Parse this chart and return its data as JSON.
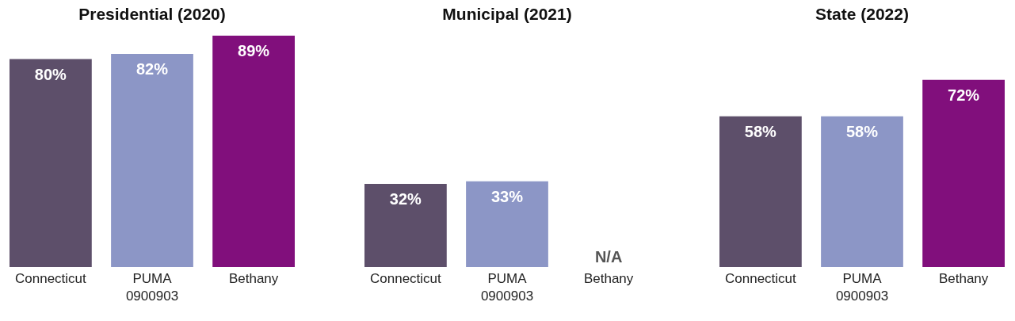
{
  "chart_data": [
    {
      "type": "bar",
      "title": "Presidential (2020)",
      "categories": [
        "Connecticut",
        "PUMA 0900903",
        "Bethany"
      ],
      "values": [
        80,
        82,
        89
      ],
      "colors": [
        "#5d4f6a",
        "#8c96c6",
        "#810f7c"
      ],
      "value_labels": [
        "80%",
        "82%",
        "89%"
      ]
    },
    {
      "type": "bar",
      "title": "Municipal (2021)",
      "categories": [
        "Connecticut",
        "PUMA 0900903",
        "Bethany"
      ],
      "values": [
        32,
        33,
        null
      ],
      "colors": [
        "#5d4f6a",
        "#8c96c6",
        "#810f7c"
      ],
      "value_labels": [
        "32%",
        "33%",
        "N/A"
      ]
    },
    {
      "type": "bar",
      "title": "State (2022)",
      "categories": [
        "Connecticut",
        "PUMA 0900903",
        "Bethany"
      ],
      "values": [
        58,
        58,
        72
      ],
      "colors": [
        "#5d4f6a",
        "#8c96c6",
        "#810f7c"
      ],
      "value_labels": [
        "58%",
        "58%",
        "72%"
      ]
    }
  ]
}
